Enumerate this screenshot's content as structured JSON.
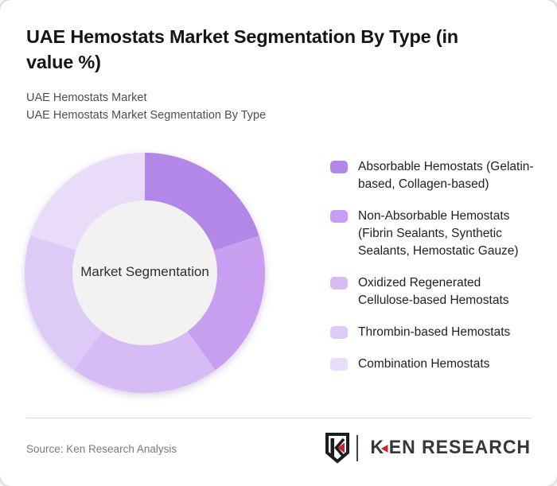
{
  "header": {
    "title": "UAE Hemostats Market Segmentation By Type (in value %)",
    "subtitle_line1": "UAE Hemostats Market",
    "subtitle_line2": "UAE Hemostats Market Segmentation By Type"
  },
  "chart_data": {
    "type": "pie",
    "variant": "donut",
    "title": "UAE Hemostats Market Segmentation By Type (in value %)",
    "center_label": "Market Segmentation",
    "categories": [
      "Absorbable Hemostats (Gelatin-based, Collagen-based)",
      "Non-Absorbable Hemostats (Fibrin Sealants, Synthetic Sealants, Hemostatic Gauze)",
      "Oxidized Regenerated Cellulose-based Hemostats",
      "Thrombin-based Hemostats",
      "Combination Hemostats"
    ],
    "values": [
      20,
      20,
      20,
      20,
      20
    ],
    "colors": [
      "#b287e8",
      "#c79ef0",
      "#d7bbf5",
      "#decaf7",
      "#e9dcf9"
    ],
    "center_circle_color": "#f2f2f2",
    "start_angle_deg": 0,
    "direction": "clockwise",
    "legend_position": "right",
    "grid": false
  },
  "footer": {
    "source_text": "Source: Ken Research Analysis",
    "brand_k": "K",
    "brand_rest": "EN RESEARCH",
    "brand_accent_color": "#c9252b"
  }
}
